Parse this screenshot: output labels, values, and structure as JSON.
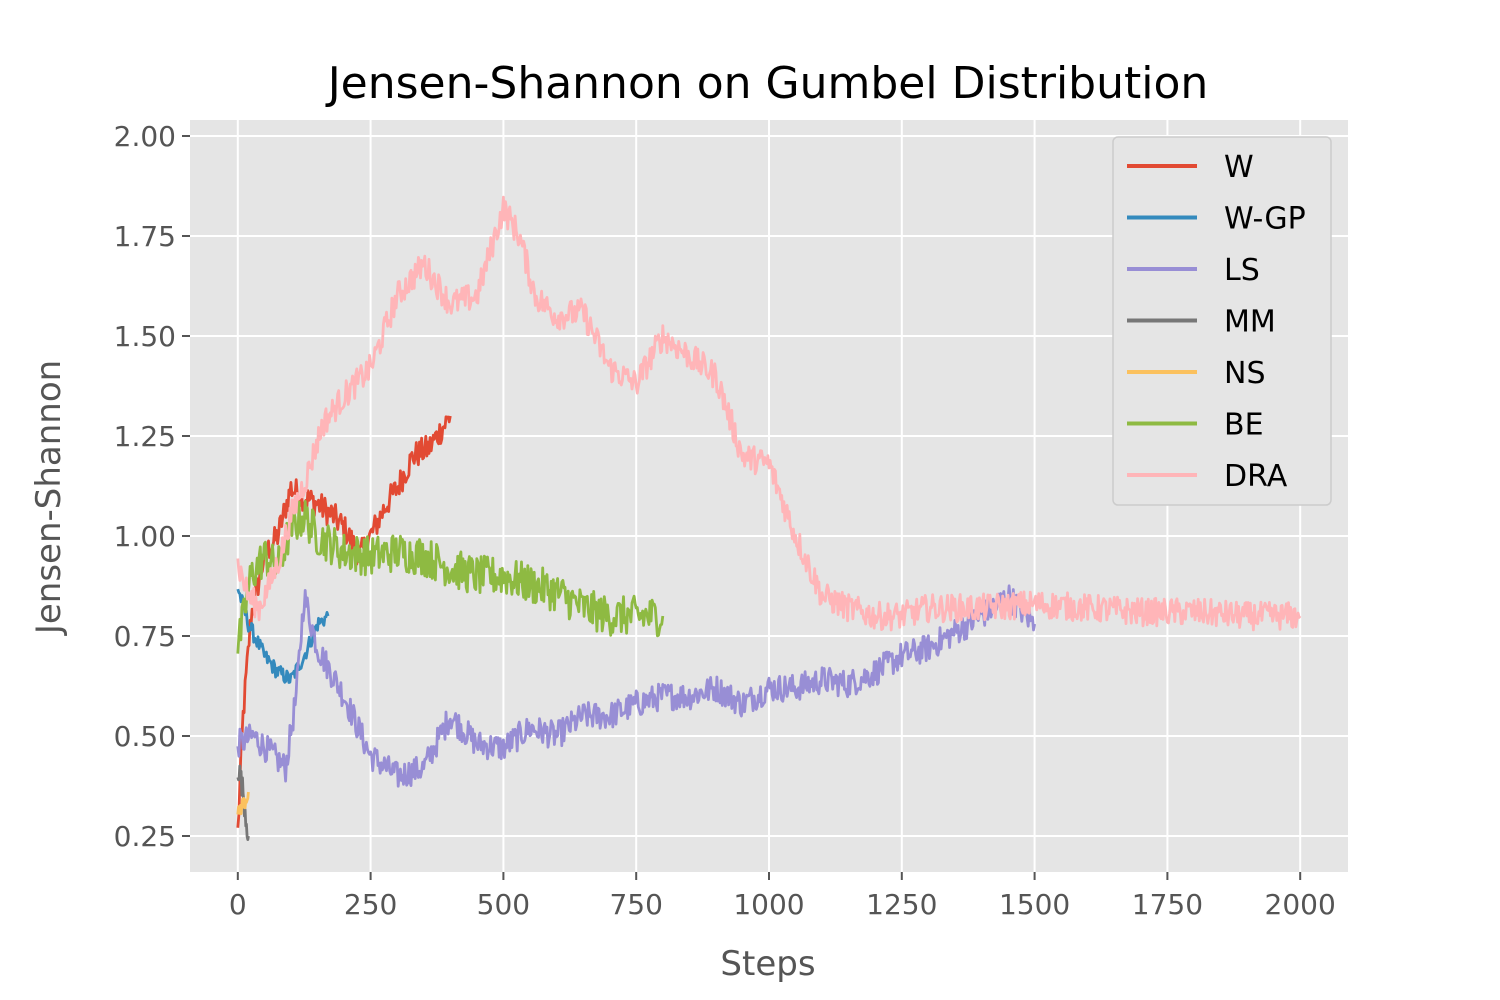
{
  "chart_data": {
    "type": "line",
    "title": "Jensen-Shannon on Gumbel Distribution",
    "xlabel": "Steps",
    "ylabel": "Jensen-Shannon",
    "xlim": [
      -90,
      2090
    ],
    "ylim": [
      0.16,
      2.04
    ],
    "x_ticks": [
      0,
      250,
      500,
      750,
      1000,
      1250,
      1500,
      1750,
      2000
    ],
    "x_tick_labels": [
      "0",
      "250",
      "500",
      "750",
      "1000",
      "1250",
      "1500",
      "1750",
      "2000"
    ],
    "y_ticks": [
      0.25,
      0.5,
      0.75,
      1.0,
      1.25,
      1.5,
      1.75,
      2.0
    ],
    "y_tick_labels": [
      "0.25",
      "0.50",
      "0.75",
      "1.00",
      "1.25",
      "1.50",
      "1.75",
      "2.00"
    ],
    "grid": true,
    "legend_position": "top-right",
    "series": [
      {
        "name": "W",
        "color": "#e24a33",
        "noise": 0.035,
        "x": [
          0,
          10,
          25,
          50,
          75,
          100,
          120,
          150,
          180,
          200,
          230,
          250,
          280,
          300,
          330,
          360,
          400
        ],
        "y": [
          0.26,
          0.55,
          0.8,
          0.95,
          1.0,
          1.12,
          1.1,
          1.08,
          1.05,
          1.02,
          0.95,
          1.0,
          1.08,
          1.12,
          1.2,
          1.22,
          1.3
        ]
      },
      {
        "name": "W-GP",
        "color": "#348abd",
        "noise": 0.02,
        "x": [
          0,
          20,
          50,
          75,
          100,
          125,
          150,
          170
        ],
        "y": [
          0.87,
          0.78,
          0.7,
          0.66,
          0.64,
          0.7,
          0.78,
          0.8
        ]
      },
      {
        "name": "LS",
        "color": "#988ed5",
        "noise": 0.035,
        "x": [
          0,
          30,
          60,
          90,
          110,
          125,
          150,
          200,
          250,
          300,
          350,
          400,
          450,
          500,
          550,
          600,
          650,
          700,
          750,
          800,
          850,
          900,
          950,
          1000,
          1050,
          1100,
          1150,
          1200,
          1250,
          1300,
          1350,
          1400,
          1450,
          1500
        ],
        "y": [
          0.48,
          0.5,
          0.46,
          0.42,
          0.6,
          0.85,
          0.72,
          0.6,
          0.45,
          0.4,
          0.42,
          0.55,
          0.48,
          0.47,
          0.52,
          0.5,
          0.55,
          0.55,
          0.58,
          0.6,
          0.6,
          0.62,
          0.58,
          0.62,
          0.62,
          0.64,
          0.63,
          0.66,
          0.7,
          0.72,
          0.76,
          0.8,
          0.85,
          0.78
        ]
      },
      {
        "name": "MM",
        "color": "#777777",
        "noise": 0.03,
        "x": [
          0,
          5,
          10,
          15,
          20
        ],
        "y": [
          0.42,
          0.4,
          0.36,
          0.3,
          0.25
        ]
      },
      {
        "name": "NS",
        "color": "#fbc15e",
        "noise": 0.02,
        "x": [
          0,
          5,
          10,
          15,
          20
        ],
        "y": [
          0.3,
          0.32,
          0.33,
          0.34,
          0.36
        ]
      },
      {
        "name": "BE",
        "color": "#8eba42",
        "noise": 0.05,
        "x": [
          0,
          25,
          50,
          75,
          100,
          125,
          150,
          200,
          250,
          300,
          350,
          400,
          450,
          500,
          550,
          600,
          650,
          700,
          750,
          800
        ],
        "y": [
          0.72,
          0.9,
          0.95,
          0.92,
          1.02,
          1.05,
          1.0,
          0.96,
          0.95,
          0.96,
          0.95,
          0.92,
          0.9,
          0.9,
          0.88,
          0.86,
          0.82,
          0.8,
          0.8,
          0.8
        ]
      },
      {
        "name": "DRA",
        "color": "#ffb5b8",
        "noise": 0.035,
        "x": [
          0,
          20,
          40,
          60,
          80,
          100,
          130,
          160,
          200,
          250,
          300,
          350,
          400,
          450,
          500,
          530,
          560,
          600,
          650,
          700,
          750,
          800,
          850,
          900,
          950,
          1000,
          1050,
          1100,
          1150,
          1200,
          1250,
          1300,
          1400,
          1500,
          1600,
          1700,
          1800,
          1900,
          2000
        ],
        "y": [
          0.93,
          0.85,
          0.82,
          0.88,
          0.95,
          1.05,
          1.15,
          1.28,
          1.35,
          1.42,
          1.6,
          1.68,
          1.58,
          1.6,
          1.82,
          1.75,
          1.6,
          1.55,
          1.56,
          1.42,
          1.38,
          1.5,
          1.45,
          1.4,
          1.2,
          1.18,
          1.0,
          0.85,
          0.82,
          0.8,
          0.8,
          0.82,
          0.82,
          0.83,
          0.82,
          0.81,
          0.81,
          0.8,
          0.8
        ]
      }
    ]
  }
}
